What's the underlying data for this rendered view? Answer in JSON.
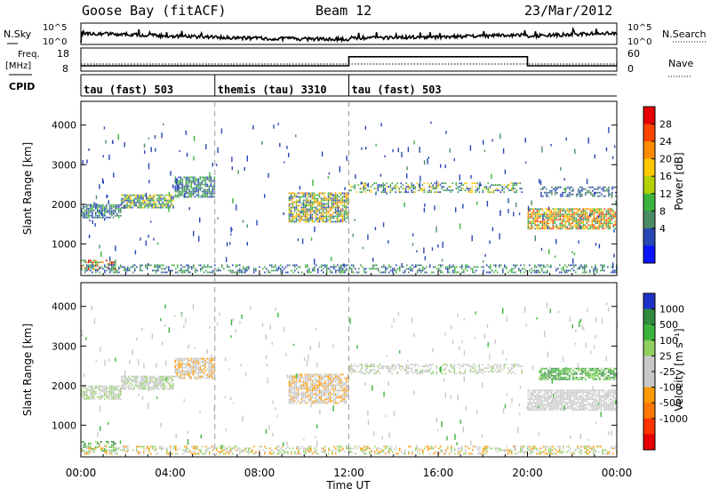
{
  "header": {
    "station": "Goose Bay (fitACF)",
    "beam": "Beam 12",
    "date": "23/Mar/2012"
  },
  "top_panels": {
    "nsky_label": "N.Sky",
    "nsky_ticks": [
      "10^5",
      "10^0"
    ],
    "nsearch_label": "N.Search",
    "nsearch_ticks": [
      "10^5",
      "10^0"
    ],
    "freq_label": "Freq.",
    "freq_unit": "[MHz]",
    "freq_ticks": [
      "18",
      "8"
    ],
    "nave_label": "Nave",
    "nave_ticks": [
      "60",
      "0"
    ],
    "cpid_label": "CPID",
    "cpid_segments": [
      {
        "label": "tau (fast) 503",
        "start_h": 0,
        "end_h": 6
      },
      {
        "label": "themis (tau) 3310",
        "start_h": 6,
        "end_h": 12
      },
      {
        "label": "tau (fast) 503",
        "start_h": 12,
        "end_h": 24
      }
    ],
    "nave_step": [
      {
        "start_h": 12,
        "end_h": 20,
        "level": 0.85
      }
    ]
  },
  "colorbars": {
    "power": {
      "label": "Power [dB]",
      "ticks": [
        "28",
        "24",
        "20",
        "16",
        "12",
        "8",
        "4"
      ],
      "colors": [
        "#e60000",
        "#ff4400",
        "#ff8c00",
        "#ffc800",
        "#b4d200",
        "#3cb43c",
        "#4a8c64",
        "#2846b4",
        "#0a14ff"
      ]
    },
    "velocity": {
      "label": "Velocity [m s⁻¹]",
      "ticks": [
        "1000",
        "500",
        "100",
        "25",
        "-25",
        "-100",
        "-500",
        "-1000"
      ],
      "colors": [
        "#1e32c8",
        "#2f8a3f",
        "#3cb43c",
        "#90d060",
        "#c8c8c8",
        "#c8c8c8",
        "#ff9900",
        "#ff7700",
        "#ff3300",
        "#e60000"
      ]
    }
  },
  "chart_data": [
    {
      "type": "heatmap",
      "name": "power",
      "ylabel": "Slant Range [km]",
      "xlabel": "Time UT",
      "xlim": [
        0,
        24
      ],
      "ylim": [
        200,
        4600
      ],
      "y_ticks": [
        "4000",
        "3000",
        "2000",
        "1000"
      ],
      "x_tick_labels": [
        "00:00",
        "04:00",
        "08:00",
        "12:00",
        "16:00",
        "20:00",
        "00:00"
      ],
      "clusters": [
        {
          "t0": 0.0,
          "t1": 1.8,
          "r0": 1650,
          "r1": 2000,
          "c": [
            "#2846b4",
            "#4a8c64",
            "#3cb43c"
          ]
        },
        {
          "t0": 1.8,
          "t1": 4.2,
          "r0": 1900,
          "r1": 2250,
          "c": [
            "#2846b4",
            "#4a8c64",
            "#3cb43c",
            "#ffc800"
          ]
        },
        {
          "t0": 4.2,
          "t1": 6.0,
          "r0": 2150,
          "r1": 2700,
          "c": [
            "#2846b4",
            "#4a8c64",
            "#3cb43c"
          ]
        },
        {
          "t0": 0.0,
          "t1": 1.6,
          "r0": 350,
          "r1": 600,
          "c": [
            "#4a8c64",
            "#3cb43c",
            "#ff8c00",
            "#e60000"
          ]
        },
        {
          "t0": 9.3,
          "t1": 12.0,
          "r0": 1550,
          "r1": 2300,
          "c": [
            "#2846b4",
            "#4a8c64",
            "#3cb43c",
            "#ffc800",
            "#ff8c00"
          ]
        },
        {
          "t0": 12.0,
          "t1": 19.8,
          "r0": 2300,
          "r1": 2550,
          "c": [
            "#2846b4",
            "#4a8c64",
            "#3cb43c",
            "#ffc800"
          ]
        },
        {
          "t0": 20.0,
          "t1": 24.0,
          "r0": 1350,
          "r1": 1900,
          "c": [
            "#3cb43c",
            "#ffc800",
            "#ff8c00",
            "#ff4400",
            "#4a8c64"
          ]
        },
        {
          "t0": 20.5,
          "t1": 24.0,
          "r0": 2200,
          "r1": 2450,
          "c": [
            "#2846b4",
            "#4a8c64"
          ]
        },
        {
          "t0": 0.0,
          "t1": 24.0,
          "r0": 250,
          "r1": 480,
          "c": [
            "#2846b4",
            "#4a8c64",
            "#3cb43c"
          ]
        }
      ]
    },
    {
      "type": "heatmap",
      "name": "velocity",
      "ylabel": "Slant Range [km]",
      "xlabel": "Time UT",
      "xlim": [
        0,
        24
      ],
      "ylim": [
        200,
        4600
      ],
      "y_ticks": [
        "4000",
        "3000",
        "2000",
        "1000"
      ],
      "x_tick_labels": [
        "00:00",
        "04:00",
        "08:00",
        "12:00",
        "16:00",
        "20:00",
        "00:00"
      ],
      "clusters": [
        {
          "t0": 0.0,
          "t1": 1.8,
          "r0": 1650,
          "r1": 2000,
          "c": [
            "#c8c8c8",
            "#c8c8c8",
            "#90d060"
          ]
        },
        {
          "t0": 1.8,
          "t1": 4.2,
          "r0": 1900,
          "r1": 2250,
          "c": [
            "#c8c8c8",
            "#c8c8c8",
            "#90d060"
          ]
        },
        {
          "t0": 4.2,
          "t1": 6.0,
          "r0": 2150,
          "r1": 2700,
          "c": [
            "#c8c8c8",
            "#c8c8c8",
            "#ff9900"
          ]
        },
        {
          "t0": 0.0,
          "t1": 1.6,
          "r0": 350,
          "r1": 600,
          "c": [
            "#3cb43c",
            "#2f8a3f",
            "#90d060"
          ]
        },
        {
          "t0": 9.3,
          "t1": 12.0,
          "r0": 1550,
          "r1": 2300,
          "c": [
            "#c8c8c8",
            "#c8c8c8",
            "#ff9900"
          ]
        },
        {
          "t0": 12.0,
          "t1": 19.8,
          "r0": 2300,
          "r1": 2550,
          "c": [
            "#c8c8c8",
            "#c8c8c8",
            "#c8c8c8",
            "#90d060"
          ]
        },
        {
          "t0": 20.0,
          "t1": 24.0,
          "r0": 1350,
          "r1": 1900,
          "c": [
            "#c8c8c8",
            "#c8c8c8",
            "#c8c8c8"
          ]
        },
        {
          "t0": 20.5,
          "t1": 24.0,
          "r0": 2150,
          "r1": 2450,
          "c": [
            "#3cb43c",
            "#2f8a3f",
            "#90d060"
          ]
        },
        {
          "t0": 0.0,
          "t1": 24.0,
          "r0": 250,
          "r1": 480,
          "c": [
            "#c8c8c8",
            "#90d060",
            "#ff9900"
          ]
        }
      ]
    }
  ]
}
